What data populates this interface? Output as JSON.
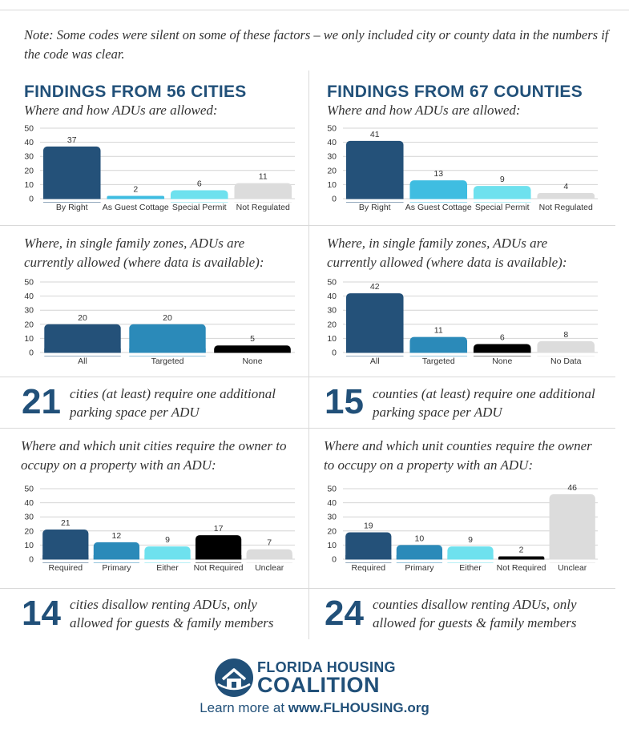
{
  "note": "Note: Some codes were silent on some of these factors – we only included city or county data in the numbers if the code was clear.",
  "cities": {
    "heading": "FINDINGS FROM 56 CITIES",
    "q1": "Where and how ADUs are allowed:",
    "q2": "Where, in single family zones, ADUs are currently allowed (where data is available):",
    "parking_number": "21",
    "parking_text": "cities (at least) require one additional parking space per ADU",
    "q3": "Where and which unit cities require the owner to occupy on a property with an ADU:",
    "renting_number": "14",
    "renting_text": "cities disallow renting ADUs, only allowed for guests & family members"
  },
  "counties": {
    "heading": "FINDINGS FROM 67 COUNTIES",
    "q1": "Where and how ADUs are allowed:",
    "q2": "Where, in single family zones, ADUs are currently allowed (where data is available):",
    "parking_number": "15",
    "parking_text": "counties (at least) require one additional parking space per ADU",
    "q3": "Where and which unit counties require the owner to occupy on a property with an ADU:",
    "renting_number": "24",
    "renting_text": "counties disallow renting ADUs, only allowed for guests & family members"
  },
  "colors": {
    "navy": "#245179",
    "mid_blue": "#2b8ab9",
    "light_blue": "#3fbde1",
    "cyan": "#6ee1ee",
    "gray": "#dcdcdc",
    "black": "#000000",
    "heading": "#215079"
  },
  "footer": {
    "logo_line1": "FLORIDA HOUSING",
    "logo_line2": "COALITION",
    "learn_prefix": "Learn more at ",
    "learn_url": "www.FLHOUSING.org"
  },
  "chart_data": [
    {
      "id": "cities_how",
      "type": "bar",
      "categories": [
        "By Right",
        "As Guest Cottage",
        "Special Permit",
        "Not Regulated"
      ],
      "values": [
        37,
        2,
        6,
        11
      ],
      "colors": [
        "#245179",
        "#3fbde1",
        "#6ee1ee",
        "#dcdcdc"
      ],
      "ylim": [
        0,
        50
      ],
      "yticks": [
        0,
        10,
        20,
        30,
        40,
        50
      ],
      "grid": true
    },
    {
      "id": "counties_how",
      "type": "bar",
      "categories": [
        "By Right",
        "As Guest Cottage",
        "Special Permit",
        "Not Regulated"
      ],
      "values": [
        41,
        13,
        9,
        4
      ],
      "colors": [
        "#245179",
        "#3fbde1",
        "#6ee1ee",
        "#dcdcdc"
      ],
      "ylim": [
        0,
        50
      ],
      "yticks": [
        0,
        10,
        20,
        30,
        40,
        50
      ],
      "grid": true
    },
    {
      "id": "cities_zones",
      "type": "bar",
      "categories": [
        "All",
        "Targeted",
        "None"
      ],
      "values": [
        20,
        20,
        5
      ],
      "colors": [
        "#245179",
        "#2b8ab9",
        "#000000"
      ],
      "ylim": [
        0,
        50
      ],
      "yticks": [
        0,
        10,
        20,
        30,
        40,
        50
      ],
      "grid": true
    },
    {
      "id": "counties_zones",
      "type": "bar",
      "categories": [
        "All",
        "Targeted",
        "None",
        "No Data"
      ],
      "values": [
        42,
        11,
        6,
        8
      ],
      "colors": [
        "#245179",
        "#2b8ab9",
        "#000000",
        "#dcdcdc"
      ],
      "ylim": [
        0,
        50
      ],
      "yticks": [
        0,
        10,
        20,
        30,
        40,
        50
      ],
      "grid": true
    },
    {
      "id": "cities_owner",
      "type": "bar",
      "categories": [
        "Required",
        "Primary",
        "Either",
        "Not Required",
        "Unclear"
      ],
      "values": [
        21,
        12,
        9,
        17,
        7
      ],
      "colors": [
        "#245179",
        "#2b8ab9",
        "#6ee1ee",
        "#000000",
        "#dcdcdc"
      ],
      "ylim": [
        0,
        50
      ],
      "yticks": [
        0,
        10,
        20,
        30,
        40,
        50
      ],
      "grid": true
    },
    {
      "id": "counties_owner",
      "type": "bar",
      "categories": [
        "Required",
        "Primary",
        "Either",
        "Not Required",
        "Unclear"
      ],
      "values": [
        19,
        10,
        9,
        2,
        46
      ],
      "colors": [
        "#245179",
        "#2b8ab9",
        "#6ee1ee",
        "#000000",
        "#dcdcdc"
      ],
      "ylim": [
        0,
        50
      ],
      "yticks": [
        0,
        10,
        20,
        30,
        40,
        50
      ],
      "grid": true
    }
  ]
}
